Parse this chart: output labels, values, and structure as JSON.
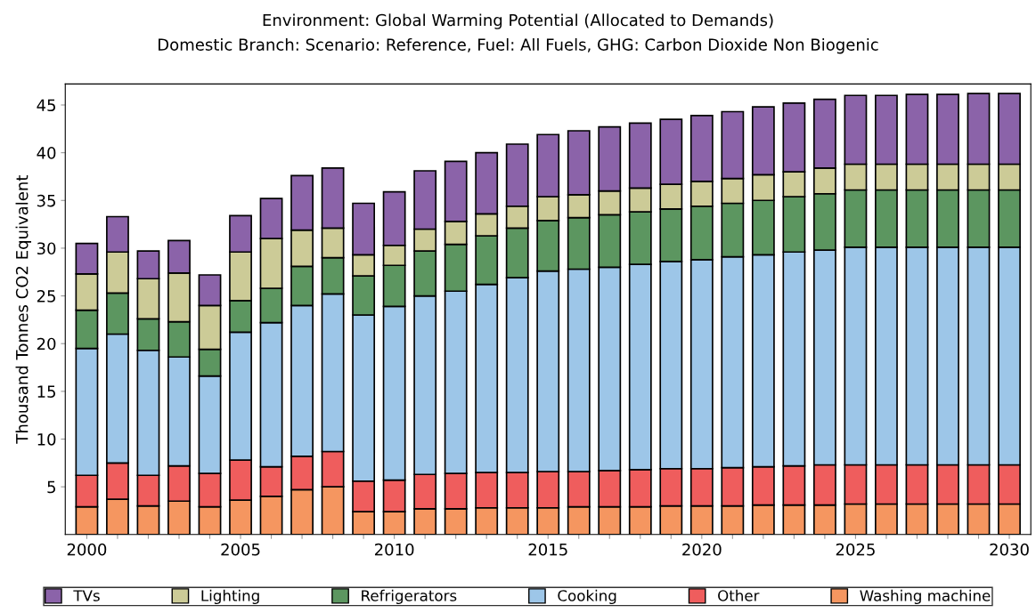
{
  "chart_data": {
    "type": "bar",
    "stacked": true,
    "title": "Environment: Global Warming Potential (Allocated to Demands)",
    "subtitle": "Domestic Branch: Scenario: Reference, Fuel: All Fuels, GHG: Carbon Dioxide Non Biogenic",
    "ylabel": "Thousand Tonnes CO2 Equivalent",
    "x": [
      2000,
      2001,
      2002,
      2003,
      2004,
      2005,
      2006,
      2007,
      2008,
      2009,
      2010,
      2011,
      2012,
      2013,
      2014,
      2015,
      2016,
      2017,
      2018,
      2019,
      2020,
      2021,
      2022,
      2023,
      2024,
      2025,
      2026,
      2027,
      2028,
      2029,
      2030
    ],
    "xlim": [
      1999.3,
      2030.7
    ],
    "xticks": [
      2000,
      {
        "value": 2001,
        "label": null
      },
      {
        "value": 2002,
        "label": null
      },
      {
        "value": 2003,
        "label": null
      },
      {
        "value": 2004,
        "label": null
      },
      2005,
      {
        "value": 2006,
        "label": null
      },
      {
        "value": 2007,
        "label": null
      },
      {
        "value": 2008,
        "label": null
      },
      {
        "value": 2009,
        "label": null
      },
      2010,
      {
        "value": 2011,
        "label": null
      },
      {
        "value": 2012,
        "label": null
      },
      {
        "value": 2013,
        "label": null
      },
      {
        "value": 2014,
        "label": null
      },
      2015,
      {
        "value": 2016,
        "label": null
      },
      {
        "value": 2017,
        "label": null
      },
      {
        "value": 2018,
        "label": null
      },
      {
        "value": 2019,
        "label": null
      },
      2020,
      {
        "value": 2021,
        "label": null
      },
      {
        "value": 2022,
        "label": null
      },
      {
        "value": 2023,
        "label": null
      },
      {
        "value": 2024,
        "label": null
      },
      2025,
      {
        "value": 2026,
        "label": null
      },
      {
        "value": 2027,
        "label": null
      },
      {
        "value": 2028,
        "label": null
      },
      {
        "value": 2029,
        "label": null
      },
      2030
    ],
    "ylim": [
      0,
      47.2
    ],
    "yticks": [
      5,
      10,
      15,
      20,
      25,
      30,
      35,
      40,
      45
    ],
    "grid": false,
    "legend": "bottom",
    "series": [
      {
        "name": "Washing machine",
        "color": "#f59660",
        "values": [
          2.9,
          3.7,
          3.0,
          3.5,
          2.9,
          3.6,
          4.0,
          4.7,
          5.0,
          2.4,
          2.4,
          2.7,
          2.7,
          2.8,
          2.8,
          2.8,
          2.9,
          2.9,
          2.9,
          3.0,
          3.0,
          3.0,
          3.1,
          3.1,
          3.1,
          3.2,
          3.2,
          3.2,
          3.2,
          3.2,
          3.2
        ]
      },
      {
        "name": "Other",
        "color": "#ef5d5d",
        "values": [
          3.3,
          3.8,
          3.2,
          3.7,
          3.5,
          4.2,
          3.1,
          3.5,
          3.7,
          3.2,
          3.3,
          3.6,
          3.7,
          3.7,
          3.7,
          3.8,
          3.7,
          3.8,
          3.9,
          3.9,
          3.9,
          4.0,
          4.0,
          4.1,
          4.2,
          4.1,
          4.1,
          4.1,
          4.1,
          4.1,
          4.1
        ]
      },
      {
        "name": "Cooking",
        "color": "#9dc6e8",
        "values": [
          13.3,
          13.5,
          13.1,
          11.4,
          10.2,
          13.4,
          15.1,
          15.8,
          16.5,
          17.4,
          18.2,
          18.7,
          19.1,
          19.7,
          20.4,
          21.0,
          21.2,
          21.3,
          21.5,
          21.7,
          21.9,
          22.1,
          22.2,
          22.4,
          22.5,
          22.8,
          22.8,
          22.8,
          22.8,
          22.8,
          22.8
        ]
      },
      {
        "name": "Refrigerators",
        "color": "#5c9660",
        "values": [
          4.0,
          4.3,
          3.3,
          3.7,
          2.8,
          3.3,
          3.6,
          4.1,
          3.8,
          4.1,
          4.3,
          4.7,
          4.9,
          5.1,
          5.2,
          5.3,
          5.4,
          5.5,
          5.5,
          5.5,
          5.6,
          5.6,
          5.7,
          5.8,
          5.9,
          6.0,
          6.0,
          6.0,
          6.0,
          6.0,
          6.0
        ]
      },
      {
        "name": "Lighting",
        "color": "#cccb97",
        "values": [
          3.8,
          4.3,
          4.2,
          5.1,
          4.6,
          5.1,
          5.2,
          3.8,
          3.1,
          2.2,
          2.1,
          2.3,
          2.4,
          2.3,
          2.3,
          2.5,
          2.4,
          2.5,
          2.5,
          2.6,
          2.6,
          2.6,
          2.7,
          2.6,
          2.7,
          2.7,
          2.7,
          2.7,
          2.7,
          2.7,
          2.7
        ]
      },
      {
        "name": "TVs",
        "color": "#8b63a9",
        "values": [
          3.2,
          3.7,
          2.9,
          3.4,
          3.2,
          3.8,
          4.2,
          5.7,
          6.3,
          5.4,
          5.6,
          6.1,
          6.3,
          6.4,
          6.5,
          6.5,
          6.7,
          6.7,
          6.8,
          6.8,
          6.9,
          7.0,
          7.1,
          7.2,
          7.2,
          7.2,
          7.2,
          7.3,
          7.3,
          7.4,
          7.4
        ]
      }
    ]
  }
}
